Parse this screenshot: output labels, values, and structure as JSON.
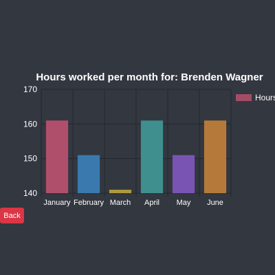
{
  "back_label": "Back",
  "colors": {
    "background": "#333740",
    "back_button": "#dc3545",
    "grid": "#23272e",
    "text": "#ffffff"
  },
  "chart_data": {
    "type": "bar",
    "title": "Hours worked per month for: Brenden Wagner",
    "categories": [
      "January",
      "February",
      "March",
      "April",
      "May",
      "June"
    ],
    "series": [
      {
        "name": "Hours",
        "values": [
          161,
          151,
          141,
          161,
          151,
          161
        ]
      }
    ],
    "bar_colors": [
      "#b04f6b",
      "#3a79ad",
      "#ae9a3c",
      "#3f8f8e",
      "#7a54b3",
      "#b57a3a"
    ],
    "legend_color": "#b04f6b",
    "ylim": [
      140,
      170
    ],
    "yticks": [
      140,
      150,
      160,
      170
    ],
    "grid": true,
    "legend_position": "top-right"
  }
}
